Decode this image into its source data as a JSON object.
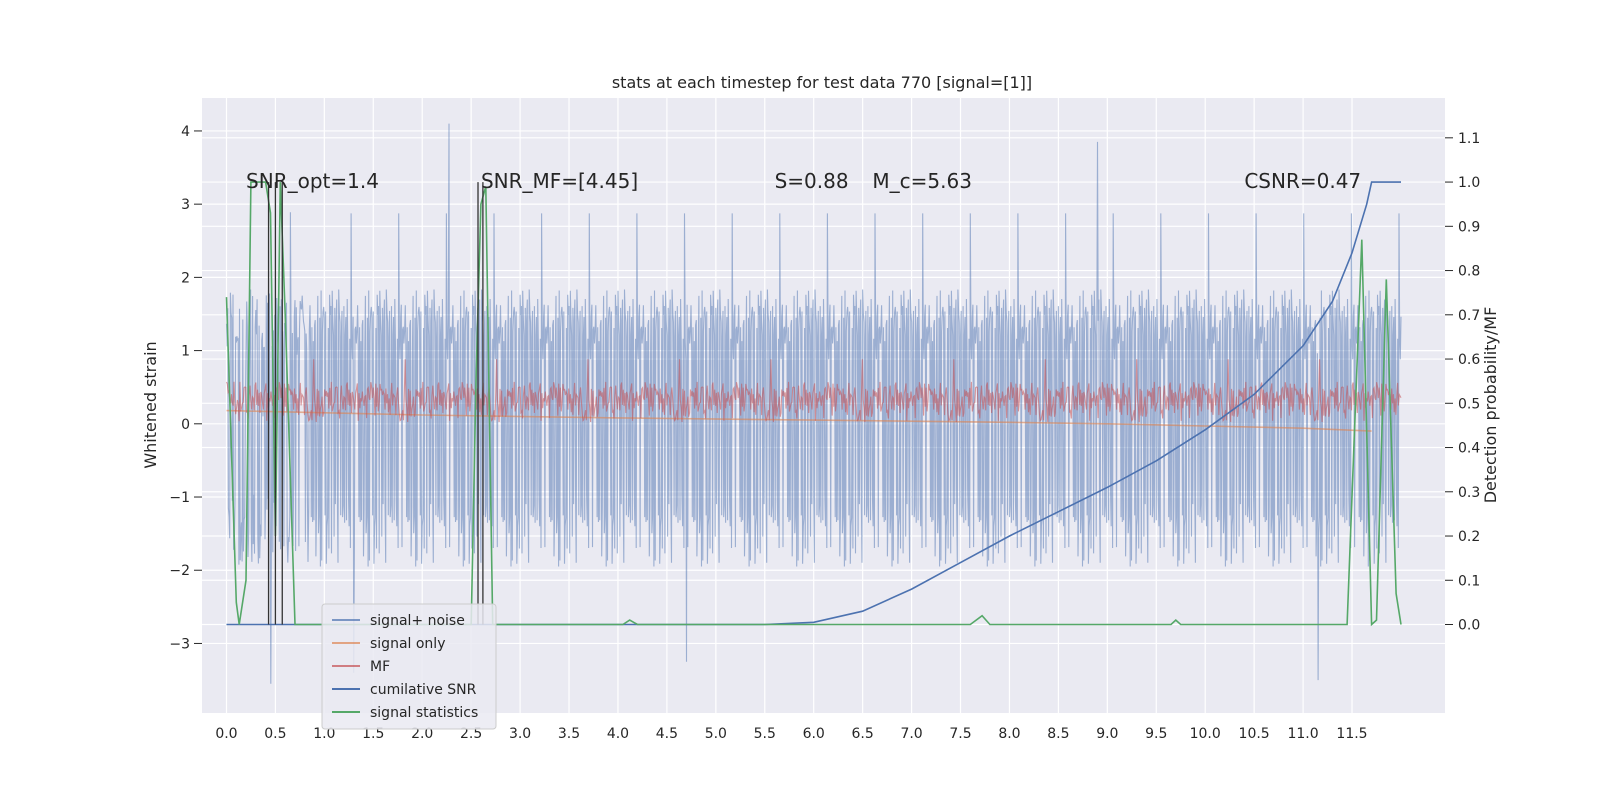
{
  "chart_data": {
    "type": "line",
    "title": "stats at each timestep for test data 770 [signal=[1]]",
    "ylabel": "Whitened strain",
    "y2label": "Detection probability/MF",
    "xlim": [
      -0.25,
      12.45
    ],
    "ylim": [
      -3.95,
      4.45
    ],
    "y2lim": [
      -0.2,
      1.19
    ],
    "grid": true,
    "legend_position": "lower-left",
    "x_ticks": [
      "0.0",
      "0.5",
      "1.0",
      "1.5",
      "2.0",
      "2.5",
      "3.0",
      "3.5",
      "4.0",
      "4.5",
      "5.0",
      "5.5",
      "6.0",
      "6.5",
      "7.0",
      "7.5",
      "8.0",
      "8.5",
      "9.0",
      "9.5",
      "10.0",
      "10.5",
      "11.0",
      "11.5"
    ],
    "y_ticks": [
      "4",
      "3",
      "2",
      "1",
      "0",
      "−1",
      "−2",
      "−3"
    ],
    "y2_ticks": [
      "1.1",
      "1.0",
      "0.9",
      "0.8",
      "0.7",
      "0.6",
      "0.5",
      "0.4",
      "0.3",
      "0.2",
      "0.1",
      "0.0"
    ],
    "annotations": [
      {
        "text": "SNR_opt=1.4",
        "x": 0.2,
        "y": 3.3
      },
      {
        "text": "SNR_MF=[4.45]",
        "x": 2.6,
        "y": 3.3
      },
      {
        "text": "S=0.88",
        "x": 5.6,
        "y": 3.3
      },
      {
        "text": "M_c=5.63",
        "x": 6.6,
        "y": 3.3
      },
      {
        "text": "CSNR=0.47",
        "x": 10.4,
        "y": 3.3
      }
    ],
    "vertical_lines": [
      0.43,
      0.5,
      0.57,
      2.57,
      2.62
    ],
    "series": [
      {
        "name": "signal+ noise",
        "color": "#4c72b0",
        "alpha": 0.5,
        "axis": "left",
        "range": [
          0,
          12
        ],
        "band": [
          -1.7,
          1.6
        ],
        "spikes": [
          [
            2.27,
            4.1
          ],
          [
            8.9,
            3.85
          ],
          [
            0.45,
            -3.55
          ],
          [
            4.7,
            -3.25
          ],
          [
            11.15,
            -3.5
          ],
          [
            1.3,
            -3.4
          ]
        ]
      },
      {
        "name": "signal only",
        "color": "#dd8452",
        "alpha": 0.6,
        "axis": "left",
        "points": [
          [
            0,
            0.18
          ],
          [
            2,
            0.12
          ],
          [
            4,
            0.08
          ],
          [
            6,
            0.05
          ],
          [
            8,
            0.02
          ],
          [
            9,
            0
          ],
          [
            10,
            -0.03
          ],
          [
            11,
            -0.06
          ],
          [
            11.7,
            -0.1
          ]
        ]
      },
      {
        "name": "MF",
        "color": "#c44e52",
        "alpha": 0.55,
        "axis": "left",
        "range": [
          0,
          12
        ],
        "band": [
          0.02,
          0.7
        ],
        "center": 0.3
      },
      {
        "name": "cumilative SNR",
        "color": "#4c72b0",
        "alpha": 1,
        "axis": "right",
        "points": [
          [
            0,
            0
          ],
          [
            5.5,
            0
          ],
          [
            6,
            0.005
          ],
          [
            6.5,
            0.03
          ],
          [
            7,
            0.08
          ],
          [
            7.5,
            0.14
          ],
          [
            8,
            0.2
          ],
          [
            8.5,
            0.255
          ],
          [
            9,
            0.31
          ],
          [
            9.5,
            0.37
          ],
          [
            10,
            0.44
          ],
          [
            10.5,
            0.52
          ],
          [
            11,
            0.63
          ],
          [
            11.3,
            0.73
          ],
          [
            11.5,
            0.84
          ],
          [
            11.65,
            0.95
          ],
          [
            11.7,
            1.0
          ],
          [
            12,
            1.0
          ]
        ]
      },
      {
        "name": "signal statistics",
        "color": "#55a868",
        "alpha": 1,
        "axis": "right",
        "points": [
          [
            0,
            0.74
          ],
          [
            0.1,
            0.05
          ],
          [
            0.13,
            0.0
          ],
          [
            0.2,
            0.1
          ],
          [
            0.25,
            1.0
          ],
          [
            0.4,
            1.0
          ],
          [
            0.45,
            0.93
          ],
          [
            0.5,
            0.2
          ],
          [
            0.55,
            1.0
          ],
          [
            0.6,
            0.7
          ],
          [
            0.7,
            0.0
          ],
          [
            2.5,
            0.0
          ],
          [
            2.55,
            0.55
          ],
          [
            2.6,
            0.95
          ],
          [
            2.65,
            0.99
          ],
          [
            2.72,
            0.0
          ],
          [
            4.05,
            0.0
          ],
          [
            4.12,
            0.01
          ],
          [
            4.2,
            0.0
          ],
          [
            7.6,
            0.0
          ],
          [
            7.72,
            0.02
          ],
          [
            7.8,
            0.0
          ],
          [
            9.65,
            0.0
          ],
          [
            9.7,
            0.01
          ],
          [
            9.75,
            0.0
          ],
          [
            11.45,
            0.0
          ],
          [
            11.6,
            0.87
          ],
          [
            11.7,
            0.0
          ],
          [
            11.75,
            0.01
          ],
          [
            11.85,
            0.78
          ],
          [
            11.95,
            0.07
          ],
          [
            12,
            0.0
          ]
        ]
      }
    ]
  }
}
